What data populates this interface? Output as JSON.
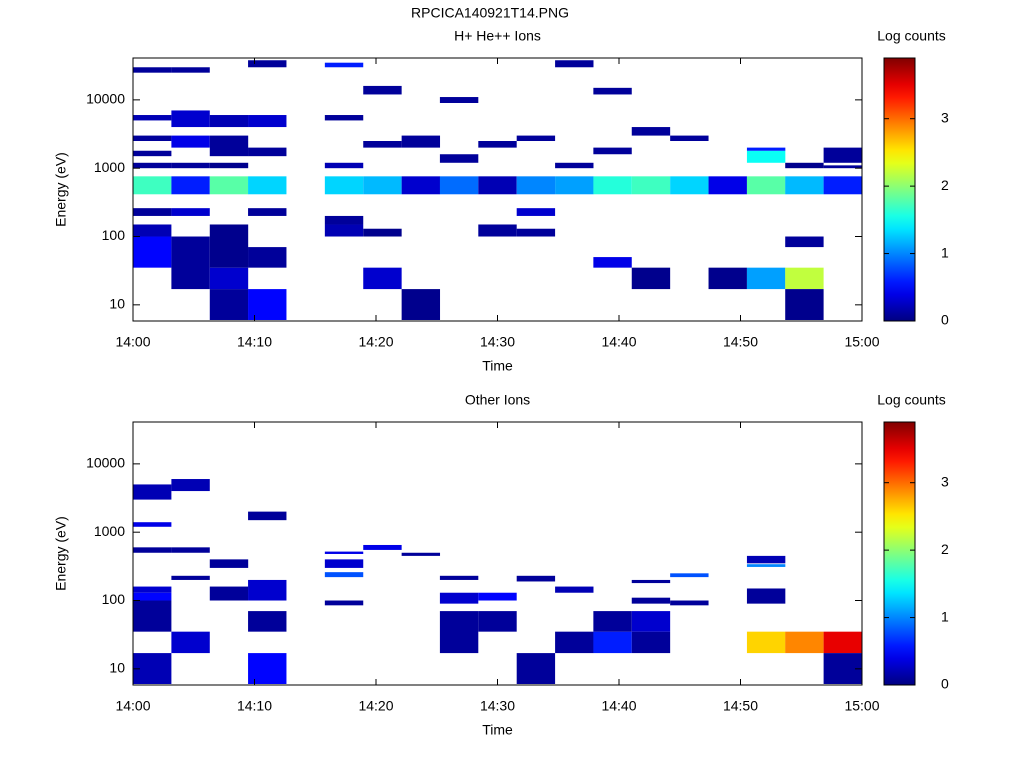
{
  "title": "RPCICA140921T14.PNG",
  "chart_data": [
    {
      "type": "heatmap",
      "title": "H+ He++ Ions",
      "xlabel": "Time",
      "ylabel": "Energy (eV)",
      "colorbar_label": "Log counts",
      "xlim": [
        0,
        60
      ],
      "xticks": [
        {
          "value": 0,
          "label": "14:00"
        },
        {
          "value": 10,
          "label": "14:10"
        },
        {
          "value": 20,
          "label": "14:20"
        },
        {
          "value": 30,
          "label": "14:30"
        },
        {
          "value": 40,
          "label": "14:40"
        },
        {
          "value": 50,
          "label": "14:50"
        },
        {
          "value": 60,
          "label": "15:00"
        }
      ],
      "ylim": [
        5.8,
        41000
      ],
      "yticks": [
        10,
        100,
        1000,
        10000
      ],
      "ylog": true,
      "clim": [
        0,
        3.9
      ],
      "cticks": [
        0,
        1,
        2,
        3
      ],
      "colormap": "jet",
      "dt": 3.16,
      "cells": [
        [
          0,
          415,
          760,
          1.7
        ],
        [
          3.16,
          415,
          760,
          0.6
        ],
        [
          6.32,
          415,
          760,
          1.8
        ],
        [
          9.47,
          415,
          760,
          1.3
        ],
        [
          15.79,
          415,
          760,
          1.3
        ],
        [
          18.95,
          415,
          760,
          1.2
        ],
        [
          22.11,
          415,
          760,
          0.3
        ],
        [
          25.26,
          415,
          760,
          0.9
        ],
        [
          28.42,
          415,
          760,
          0.2
        ],
        [
          31.58,
          415,
          760,
          1.0
        ],
        [
          34.74,
          415,
          760,
          1.1
        ],
        [
          37.89,
          415,
          760,
          1.6
        ],
        [
          41.05,
          415,
          760,
          1.7
        ],
        [
          44.21,
          415,
          760,
          1.3
        ],
        [
          47.37,
          415,
          760,
          0.4
        ],
        [
          50.53,
          415,
          760,
          1.8
        ],
        [
          53.68,
          415,
          760,
          1.2
        ],
        [
          56.84,
          415,
          760,
          0.6
        ],
        [
          0,
          35,
          100,
          0.5
        ],
        [
          0,
          100,
          150,
          0.2
        ],
        [
          0,
          200,
          260,
          0.1
        ],
        [
          3.16,
          17,
          100,
          0.1
        ],
        [
          3.16,
          200,
          260,
          0.3
        ],
        [
          6.32,
          6,
          17,
          0.1
        ],
        [
          6.32,
          17,
          35,
          0.3
        ],
        [
          6.32,
          35,
          150,
          0.05
        ],
        [
          9.47,
          6,
          17,
          0.5
        ],
        [
          9.47,
          35,
          70,
          0.1
        ],
        [
          9.47,
          200,
          260,
          0.1
        ],
        [
          15.79,
          100,
          150,
          0.2
        ],
        [
          15.79,
          150,
          200,
          0.1
        ],
        [
          18.95,
          17,
          35,
          0.3
        ],
        [
          18.95,
          100,
          130,
          0.05
        ],
        [
          22.11,
          6,
          17,
          0.05
        ],
        [
          28.42,
          100,
          150,
          0.1
        ],
        [
          31.58,
          100,
          130,
          0.1
        ],
        [
          31.58,
          200,
          260,
          0.3
        ],
        [
          37.89,
          35,
          50,
          0.4
        ],
        [
          41.05,
          17,
          35,
          0.05
        ],
        [
          47.37,
          17,
          35,
          0.05
        ],
        [
          50.53,
          17,
          35,
          1.1
        ],
        [
          53.68,
          17,
          35,
          2.2
        ],
        [
          53.68,
          6,
          17,
          0.05
        ],
        [
          53.68,
          70,
          100,
          0.1
        ],
        [
          0,
          1000,
          1200,
          0.1
        ],
        [
          0,
          2500,
          3000,
          0.1
        ],
        [
          0,
          5000,
          6000,
          0.2
        ],
        [
          0,
          25000,
          30000,
          0.1
        ],
        [
          0,
          1500,
          1800,
          0.1
        ],
        [
          3.16,
          2000,
          3000,
          0.4
        ],
        [
          3.16,
          4000,
          7000,
          0.3
        ],
        [
          3.16,
          25000,
          30000,
          0.1
        ],
        [
          3.16,
          1000,
          1200,
          0.1
        ],
        [
          6.32,
          1500,
          3000,
          0.1
        ],
        [
          6.32,
          4000,
          6000,
          0.2
        ],
        [
          6.32,
          1000,
          1200,
          0.05
        ],
        [
          9.47,
          4000,
          6000,
          0.3
        ],
        [
          9.47,
          1500,
          2000,
          0.1
        ],
        [
          9.47,
          30000,
          38000,
          0.1
        ],
        [
          15.79,
          30000,
          35000,
          0.6
        ],
        [
          15.79,
          5000,
          6000,
          0.1
        ],
        [
          15.79,
          1000,
          1200,
          0.2
        ],
        [
          18.95,
          12000,
          16000,
          0.1
        ],
        [
          18.95,
          2000,
          2500,
          0.1
        ],
        [
          22.11,
          2000,
          3000,
          0.1
        ],
        [
          25.26,
          1200,
          1600,
          0.1
        ],
        [
          25.26,
          9000,
          11000,
          0.1
        ],
        [
          28.42,
          2000,
          2500,
          0.1
        ],
        [
          31.58,
          2500,
          3000,
          0.1
        ],
        [
          34.74,
          30000,
          38000,
          0.1
        ],
        [
          34.74,
          1000,
          1200,
          0.1
        ],
        [
          37.89,
          1600,
          2000,
          0.1
        ],
        [
          37.89,
          12000,
          15000,
          0.1
        ],
        [
          41.05,
          3000,
          4000,
          0.1
        ],
        [
          44.21,
          2500,
          3000,
          0.1
        ],
        [
          50.53,
          1200,
          1800,
          1.5
        ],
        [
          50.53,
          1800,
          2000,
          0.6
        ],
        [
          53.68,
          1000,
          1200,
          0.05
        ],
        [
          56.84,
          1200,
          2000,
          0.1
        ],
        [
          56.84,
          1000,
          1100,
          0.1
        ]
      ]
    },
    {
      "type": "heatmap",
      "title": "Other Ions",
      "xlabel": "Time",
      "ylabel": "Energy (eV)",
      "colorbar_label": "Log counts",
      "xlim": [
        0,
        60
      ],
      "xticks": [
        {
          "value": 0,
          "label": "14:00"
        },
        {
          "value": 10,
          "label": "14:10"
        },
        {
          "value": 20,
          "label": "14:20"
        },
        {
          "value": 30,
          "label": "14:30"
        },
        {
          "value": 40,
          "label": "14:40"
        },
        {
          "value": 50,
          "label": "14:50"
        },
        {
          "value": 60,
          "label": "15:00"
        }
      ],
      "ylim": [
        5.8,
        41000
      ],
      "yticks": [
        10,
        100,
        1000,
        10000
      ],
      "ylog": true,
      "clim": [
        0,
        3.9
      ],
      "cticks": [
        0,
        1,
        2,
        3
      ],
      "colormap": "jet",
      "dt": 3.16,
      "cells": [
        [
          0,
          6,
          17,
          0.2
        ],
        [
          0,
          35,
          100,
          0.1
        ],
        [
          0,
          100,
          130,
          0.5
        ],
        [
          0,
          130,
          160,
          0.3
        ],
        [
          0,
          500,
          600,
          0.1
        ],
        [
          0,
          1200,
          1400,
          0.4
        ],
        [
          0,
          3000,
          5000,
          0.2
        ],
        [
          3.16,
          17,
          35,
          0.3
        ],
        [
          3.16,
          500,
          600,
          0.1
        ],
        [
          3.16,
          200,
          230,
          0.1
        ],
        [
          3.16,
          4000,
          6000,
          0.2
        ],
        [
          6.32,
          100,
          160,
          0.1
        ],
        [
          6.32,
          300,
          400,
          0.1
        ],
        [
          9.47,
          6,
          17,
          0.5
        ],
        [
          9.47,
          35,
          70,
          0.1
        ],
        [
          9.47,
          100,
          200,
          0.3
        ],
        [
          9.47,
          1500,
          2000,
          0.1
        ],
        [
          15.79,
          85,
          100,
          0.1
        ],
        [
          15.79,
          220,
          260,
          0.8
        ],
        [
          15.79,
          300,
          400,
          0.3
        ],
        [
          15.79,
          480,
          520,
          0.4
        ],
        [
          18.95,
          550,
          650,
          0.4
        ],
        [
          22.11,
          450,
          500,
          0.1
        ],
        [
          25.26,
          17,
          70,
          0.1
        ],
        [
          25.26,
          90,
          130,
          0.3
        ],
        [
          25.26,
          200,
          230,
          0.1
        ],
        [
          28.42,
          35,
          70,
          0.1
        ],
        [
          28.42,
          100,
          130,
          0.5
        ],
        [
          31.58,
          6,
          17,
          0.1
        ],
        [
          31.58,
          190,
          230,
          0.1
        ],
        [
          34.74,
          17,
          35,
          0.1
        ],
        [
          34.74,
          130,
          160,
          0.2
        ],
        [
          37.89,
          17,
          35,
          0.6
        ],
        [
          37.89,
          35,
          70,
          0.1
        ],
        [
          41.05,
          17,
          35,
          0.1
        ],
        [
          41.05,
          35,
          70,
          0.3
        ],
        [
          41.05,
          90,
          110,
          0.1
        ],
        [
          41.05,
          180,
          200,
          0.1
        ],
        [
          44.21,
          85,
          100,
          0.1
        ],
        [
          44.21,
          220,
          250,
          0.8
        ],
        [
          50.53,
          17,
          35,
          2.6
        ],
        [
          50.53,
          90,
          150,
          0.1
        ],
        [
          50.53,
          310,
          340,
          1.0
        ],
        [
          50.53,
          350,
          450,
          0.2
        ],
        [
          53.68,
          17,
          35,
          2.9
        ],
        [
          56.84,
          17,
          35,
          3.5
        ],
        [
          56.84,
          6,
          17,
          0.1
        ]
      ]
    }
  ]
}
